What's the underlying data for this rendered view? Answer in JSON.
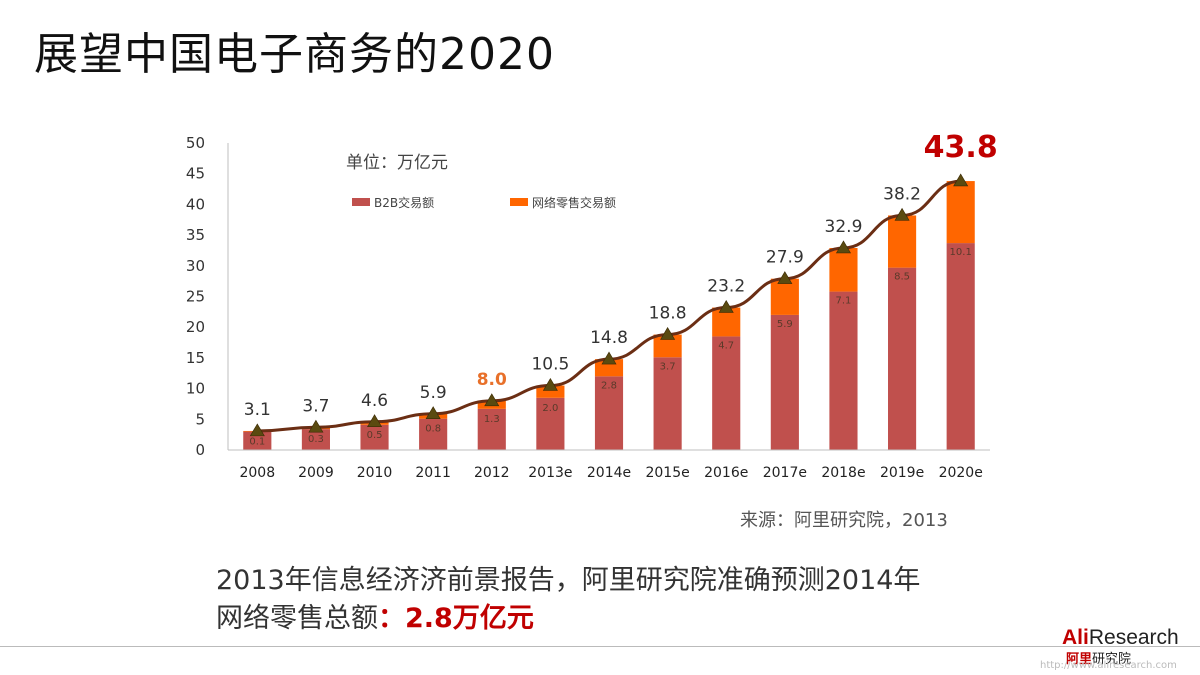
{
  "page": {
    "title": "展望中国电子商务的2020",
    "source": "来源：阿里研究院，2013",
    "summary_line1": "2013年信息经济济前景报告，阿里研究院准确预测2014年",
    "summary_line2_prefix": "网络零售总额",
    "summary_line2_highlight": "：2.8万亿元",
    "logo_text_red": "Ali",
    "logo_text": "Research",
    "logo_cn_red": "阿里",
    "logo_cn": "研究院",
    "logo_url": "http://www.aliresearch.com"
  },
  "chart_data": {
    "type": "bar",
    "stacked": true,
    "unit_label": "单位：万亿元",
    "categories": [
      "2008",
      "2009",
      "2010",
      "2011",
      "2012",
      "2013e",
      "2014e",
      "2015e",
      "2016e",
      "2017e",
      "2018e",
      "2019e",
      "2020e"
    ],
    "series": [
      {
        "name": "B2B交易额",
        "color": "#c0504d",
        "values": [
          3.0,
          3.4,
          4.1,
          5.1,
          6.7,
          8.5,
          12.0,
          15.1,
          18.5,
          22.0,
          25.8,
          29.7,
          33.7
        ]
      },
      {
        "name": "网络零售交易额",
        "color": "#ff6600",
        "values": [
          0.1,
          0.3,
          0.5,
          0.8,
          1.3,
          2.0,
          2.8,
          3.7,
          4.7,
          5.9,
          7.1,
          8.5,
          10.1
        ]
      }
    ],
    "retail_labels": [
      "0.1",
      "0.3",
      "0.5",
      "0.8",
      "1.3",
      "2.0",
      "2.8",
      "3.7",
      "4.7",
      "5.9",
      "7.1",
      "8.5",
      "10.1"
    ],
    "totals": [
      3.1,
      3.7,
      4.6,
      5.9,
      8.0,
      10.5,
      14.8,
      18.8,
      23.2,
      27.9,
      32.9,
      38.2,
      43.8
    ],
    "total_labels": [
      "3.1",
      "3.7",
      "4.6",
      "5.9",
      "8.0",
      "10.5",
      "14.8",
      "18.8",
      "23.2",
      "27.9",
      "32.9",
      "38.2",
      "43.8"
    ],
    "highlight_totals": {
      "4": "#e8702a",
      "12": "#c00000"
    },
    "trend_line_color": "#6b2e14",
    "ylim": [
      0,
      50
    ],
    "yticks": [
      0,
      5,
      10,
      15,
      20,
      25,
      30,
      35,
      40,
      45,
      50
    ],
    "ytick_labels": [
      "0",
      "5",
      "10",
      "15",
      "20",
      "25",
      "30",
      "35",
      "40",
      "45",
      "50"
    ],
    "legend_position": "top-left inside"
  }
}
